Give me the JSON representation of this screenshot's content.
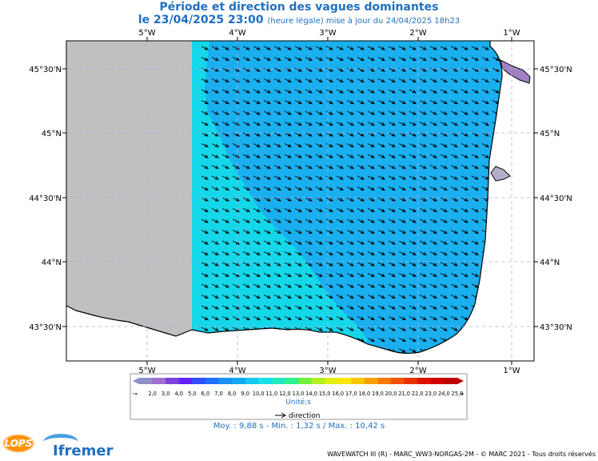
{
  "header": {
    "title": "Période et direction des vagues dominantes",
    "date_line": "le 23/04/2025 23:00",
    "date_sub": "(heure légale) mise à jour du 24/04/2025 18h23"
  },
  "map": {
    "lon_labels": [
      "5°W",
      "4°W",
      "3°W",
      "2°W",
      "1°W"
    ],
    "lat_labels": [
      "45°30'N",
      "45°N",
      "44°30'N",
      "44°N",
      "43°30'N"
    ],
    "colors": {
      "land": "#ffffff",
      "no_data": "#c0c0c0",
      "sea_10s": "#1ab0f0",
      "sea_11s": "#14d8ea",
      "estuary": "#a080c0"
    },
    "arrow_direction": "towards south-east"
  },
  "legend": {
    "ticks": [
      "-∞",
      "2,0",
      "3,0",
      "4,0",
      "5,0",
      "6,0",
      "7,0",
      "8,0",
      "9,0",
      "10,0",
      "11,0",
      "12,0",
      "13,0",
      "14,0",
      "15,0",
      "16,0",
      "17,0",
      "18,0",
      "19,0",
      "20,0",
      "21,0",
      "22,0",
      "23,0",
      "24,0",
      "25,0",
      "∞"
    ],
    "colors": [
      "#9090c8",
      "#a070d0",
      "#8040e0",
      "#6020ff",
      "#3050ff",
      "#2070ff",
      "#1890f8",
      "#10a8f0",
      "#14c8f0",
      "#18e0e8",
      "#20e8c0",
      "#30f090",
      "#70f040",
      "#b0f020",
      "#e0f010",
      "#f8e800",
      "#f8c800",
      "#f8a000",
      "#f87800",
      "#f05000",
      "#e83000",
      "#e01000",
      "#d00000",
      "#c00000"
    ],
    "units": "Unité:s",
    "direction_label": "direction"
  },
  "stats": {
    "text": "Moy. : 9,88 s   -   Min. : 1,32 s / Max. : 10,42 s"
  },
  "footer": {
    "credits": "WAVEWATCH III (R) - MARC_WW3-NORGAS-2M - © MARC 2021 - Tous droits réservés",
    "lops_logo": "LOPS",
    "ifremer_logo": "Ifremer"
  }
}
